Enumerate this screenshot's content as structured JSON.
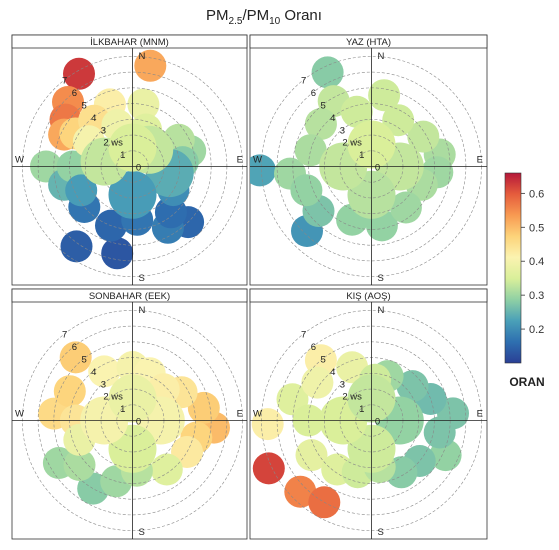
{
  "figure": {
    "title_main": "PM",
    "title_sub1": "2.5",
    "title_sep": "/PM",
    "title_sub2": "10",
    "title_tail": " Oranı"
  },
  "colorbar": {
    "title": "ORAN",
    "ticks": [
      "0.6",
      "0.5",
      "0.4",
      "0.3",
      "0.2"
    ],
    "tick_values": [
      0.6,
      0.5,
      0.4,
      0.3,
      0.2
    ],
    "range": [
      0.1,
      0.66
    ],
    "stops": [
      "#2a3f95",
      "#2e6fb0",
      "#4aa0b8",
      "#8fd0a4",
      "#d9ef9a",
      "#fbf3b0",
      "#fdd37a",
      "#f89a52",
      "#e55c3c",
      "#b5183a"
    ]
  },
  "chart_data": [
    {
      "type": "polar-annulus",
      "title": "İLKBAHAR (MNM)",
      "compass": [
        "N",
        "E",
        "S",
        "W"
      ],
      "radial_labels": [
        "0",
        "1",
        "2 ws",
        "3",
        "4",
        "5",
        "6",
        "7"
      ],
      "radial_max_ws": 7.5,
      "points": [
        {
          "dir": 330,
          "ws": 6.8,
          "ratio": 0.63
        },
        {
          "dir": 315,
          "ws": 5.8,
          "ratio": 0.55
        },
        {
          "dir": 305,
          "ws": 5.2,
          "ratio": 0.57
        },
        {
          "dir": 295,
          "ws": 4.8,
          "ratio": 0.52
        },
        {
          "dir": 300,
          "ws": 4.2,
          "ratio": 0.47
        },
        {
          "dir": 320,
          "ws": 3.8,
          "ratio": 0.45
        },
        {
          "dir": 340,
          "ws": 4.2,
          "ratio": 0.42
        },
        {
          "dir": 10,
          "ws": 6.5,
          "ratio": 0.52
        },
        {
          "dir": 10,
          "ws": 4.0,
          "ratio": 0.38
        },
        {
          "dir": 300,
          "ws": 3.2,
          "ratio": 0.4
        },
        {
          "dir": 340,
          "ws": 2.8,
          "ratio": 0.39
        },
        {
          "dir": 20,
          "ws": 2.5,
          "ratio": 0.36
        },
        {
          "dir": 60,
          "ws": 3.4,
          "ratio": 0.32
        },
        {
          "dir": 75,
          "ws": 3.8,
          "ratio": 0.3
        },
        {
          "dir": 85,
          "ws": 3.2,
          "ratio": 0.28
        },
        {
          "dir": 270,
          "ws": 5.5,
          "ratio": 0.3
        },
        {
          "dir": 270,
          "ws": 3.8,
          "ratio": 0.29
        },
        {
          "dir": 255,
          "ws": 4.5,
          "ratio": 0.25
        },
        {
          "dir": 245,
          "ws": 3.6,
          "ratio": 0.22
        },
        {
          "dir": 230,
          "ws": 4.0,
          "ratio": 0.17
        },
        {
          "dir": 215,
          "ws": 6.2,
          "ratio": 0.14
        },
        {
          "dir": 190,
          "ws": 5.6,
          "ratio": 0.13
        },
        {
          "dir": 200,
          "ws": 4.0,
          "ratio": 0.15
        },
        {
          "dir": 175,
          "ws": 3.4,
          "ratio": 0.17
        },
        {
          "dir": 150,
          "ws": 4.5,
          "ratio": 0.18
        },
        {
          "dir": 140,
          "ws": 3.8,
          "ratio": 0.16
        },
        {
          "dir": 120,
          "ws": 3.0,
          "ratio": 0.2
        },
        {
          "dir": 100,
          "ws": 2.4,
          "ratio": 0.24
        },
        {
          "dir": 135,
          "ws": 5.0,
          "ratio": 0.15
        },
        {
          "dir": 180,
          "ws": 1.8,
          "ratio": 0.22
        },
        {
          "dir": 45,
          "ws": 1.5,
          "ratio": 0.33
        },
        {
          "dir": 280,
          "ws": 1.8,
          "ratio": 0.33
        },
        {
          "dir": 0,
          "ws": 1.2,
          "ratio": 0.35
        }
      ]
    },
    {
      "type": "polar-annulus",
      "title": "YAZ (HTA)",
      "compass": [
        "N",
        "E",
        "S",
        "W"
      ],
      "radial_labels": [
        "0",
        "1",
        "2 ws",
        "3",
        "4",
        "5",
        "6",
        "7"
      ],
      "radial_max_ws": 7.5,
      "points": [
        {
          "dir": 335,
          "ws": 6.6,
          "ratio": 0.28
        },
        {
          "dir": 330,
          "ws": 4.8,
          "ratio": 0.33
        },
        {
          "dir": 310,
          "ws": 4.2,
          "ratio": 0.32
        },
        {
          "dir": 285,
          "ws": 4.0,
          "ratio": 0.31
        },
        {
          "dir": 345,
          "ws": 3.6,
          "ratio": 0.34
        },
        {
          "dir": 10,
          "ws": 4.6,
          "ratio": 0.34
        },
        {
          "dir": 30,
          "ws": 3.4,
          "ratio": 0.34
        },
        {
          "dir": 60,
          "ws": 3.8,
          "ratio": 0.33
        },
        {
          "dir": 80,
          "ws": 4.4,
          "ratio": 0.31
        },
        {
          "dir": 95,
          "ws": 4.2,
          "ratio": 0.3
        },
        {
          "dir": 110,
          "ws": 3.4,
          "ratio": 0.31
        },
        {
          "dir": 140,
          "ws": 3.4,
          "ratio": 0.3
        },
        {
          "dir": 170,
          "ws": 3.8,
          "ratio": 0.29
        },
        {
          "dir": 200,
          "ws": 3.6,
          "ratio": 0.29
        },
        {
          "dir": 230,
          "ws": 4.4,
          "ratio": 0.27
        },
        {
          "dir": 225,
          "ws": 5.8,
          "ratio": 0.21
        },
        {
          "dir": 250,
          "ws": 4.4,
          "ratio": 0.29
        },
        {
          "dir": 265,
          "ws": 5.2,
          "ratio": 0.3
        },
        {
          "dir": 268,
          "ws": 7.1,
          "ratio": 0.23
        },
        {
          "dir": 0,
          "ws": 1.4,
          "ratio": 0.35
        },
        {
          "dir": 90,
          "ws": 1.8,
          "ratio": 0.33
        },
        {
          "dir": 180,
          "ws": 1.8,
          "ratio": 0.32
        },
        {
          "dir": 270,
          "ws": 1.8,
          "ratio": 0.33
        }
      ]
    },
    {
      "type": "polar-annulus",
      "title": "SONBAHAR (EEK)",
      "compass": [
        "N",
        "E",
        "S",
        "W"
      ],
      "radial_labels": [
        "0",
        "1",
        "2 ws",
        "3",
        "4",
        "5",
        "6",
        "7"
      ],
      "radial_max_ws": 7.5,
      "points": [
        {
          "dir": 318,
          "ws": 5.4,
          "ratio": 0.48
        },
        {
          "dir": 295,
          "ws": 4.4,
          "ratio": 0.47
        },
        {
          "dir": 275,
          "ws": 5.0,
          "ratio": 0.46
        },
        {
          "dir": 270,
          "ws": 3.6,
          "ratio": 0.44
        },
        {
          "dir": 330,
          "ws": 3.6,
          "ratio": 0.41
        },
        {
          "dir": 0,
          "ws": 3.4,
          "ratio": 0.4
        },
        {
          "dir": 20,
          "ws": 3.2,
          "ratio": 0.41
        },
        {
          "dir": 45,
          "ws": 2.8,
          "ratio": 0.42
        },
        {
          "dir": 60,
          "ws": 3.6,
          "ratio": 0.44
        },
        {
          "dir": 80,
          "ws": 4.6,
          "ratio": 0.48
        },
        {
          "dir": 95,
          "ws": 5.2,
          "ratio": 0.5
        },
        {
          "dir": 105,
          "ws": 4.2,
          "ratio": 0.47
        },
        {
          "dir": 120,
          "ws": 4.0,
          "ratio": 0.43
        },
        {
          "dir": 145,
          "ws": 3.8,
          "ratio": 0.36
        },
        {
          "dir": 175,
          "ws": 3.2,
          "ratio": 0.32
        },
        {
          "dir": 195,
          "ws": 4.0,
          "ratio": 0.3
        },
        {
          "dir": 210,
          "ws": 5.0,
          "ratio": 0.28
        },
        {
          "dir": 230,
          "ws": 4.4,
          "ratio": 0.31
        },
        {
          "dir": 250,
          "ws": 3.6,
          "ratio": 0.38
        },
        {
          "dir": 240,
          "ws": 5.4,
          "ratio": 0.3
        },
        {
          "dir": 0,
          "ws": 1.4,
          "ratio": 0.38
        },
        {
          "dir": 90,
          "ws": 1.8,
          "ratio": 0.4
        },
        {
          "dir": 180,
          "ws": 1.8,
          "ratio": 0.35
        },
        {
          "dir": 270,
          "ws": 1.8,
          "ratio": 0.4
        }
      ]
    },
    {
      "type": "polar-annulus",
      "title": "KIŞ (AOŞ)",
      "compass": [
        "N",
        "E",
        "S",
        "W"
      ],
      "radial_labels": [
        "0",
        "1",
        "2 ws",
        "3",
        "4",
        "5",
        "6",
        "7"
      ],
      "radial_max_ws": 7.5,
      "points": [
        {
          "dir": 320,
          "ws": 5.0,
          "ratio": 0.42
        },
        {
          "dir": 305,
          "ws": 4.2,
          "ratio": 0.39
        },
        {
          "dir": 340,
          "ws": 3.6,
          "ratio": 0.38
        },
        {
          "dir": 285,
          "ws": 5.2,
          "ratio": 0.36
        },
        {
          "dir": 270,
          "ws": 4.0,
          "ratio": 0.35
        },
        {
          "dir": 268,
          "ws": 6.6,
          "ratio": 0.42
        },
        {
          "dir": 245,
          "ws": 7.2,
          "ratio": 0.62
        },
        {
          "dir": 225,
          "ws": 6.4,
          "ratio": 0.56
        },
        {
          "dir": 210,
          "ws": 6.0,
          "ratio": 0.58
        },
        {
          "dir": 240,
          "ws": 4.4,
          "ratio": 0.37
        },
        {
          "dir": 215,
          "ws": 3.8,
          "ratio": 0.36
        },
        {
          "dir": 195,
          "ws": 3.4,
          "ratio": 0.34
        },
        {
          "dir": 170,
          "ws": 3.0,
          "ratio": 0.32
        },
        {
          "dir": 150,
          "ws": 3.8,
          "ratio": 0.28
        },
        {
          "dir": 130,
          "ws": 4.0,
          "ratio": 0.27
        },
        {
          "dir": 115,
          "ws": 5.2,
          "ratio": 0.29
        },
        {
          "dir": 100,
          "ws": 4.4,
          "ratio": 0.27
        },
        {
          "dir": 85,
          "ws": 5.2,
          "ratio": 0.27
        },
        {
          "dir": 70,
          "ws": 4.0,
          "ratio": 0.26
        },
        {
          "dir": 50,
          "ws": 3.4,
          "ratio": 0.27
        },
        {
          "dir": 20,
          "ws": 3.0,
          "ratio": 0.3
        },
        {
          "dir": 5,
          "ws": 2.6,
          "ratio": 0.34
        },
        {
          "dir": 0,
          "ws": 1.4,
          "ratio": 0.33
        },
        {
          "dir": 90,
          "ws": 1.8,
          "ratio": 0.29
        },
        {
          "dir": 180,
          "ws": 1.8,
          "ratio": 0.34
        },
        {
          "dir": 270,
          "ws": 1.8,
          "ratio": 0.35
        }
      ]
    }
  ]
}
